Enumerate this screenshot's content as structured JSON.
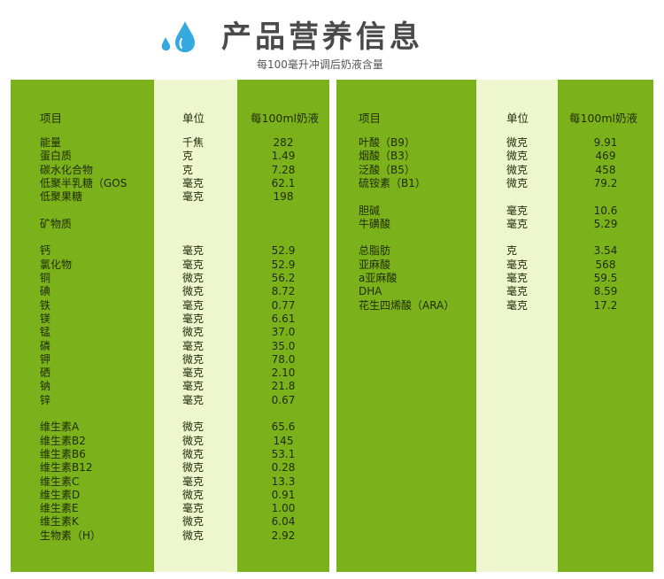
{
  "header": {
    "title": "产品营养信息",
    "subtitle": "每100毫升冲调后奶液含量"
  },
  "colors": {
    "green": "#7bb21b",
    "light": "#eef6d0",
    "drop": "#35a8e0"
  },
  "left": {
    "headers": [
      "项目",
      "单位",
      "每100ml奶液"
    ],
    "rows": [
      {
        "name": "能量",
        "unit": "千焦",
        "value": "282",
        "line": 0
      },
      {
        "name": "蛋白质",
        "unit": "克",
        "value": "1.49",
        "line": 1
      },
      {
        "name": "碳水化合物",
        "unit": "克",
        "value": "7.28",
        "line": 2
      },
      {
        "name": "低聚半乳糖（GOS",
        "unit": "毫克",
        "value": "62.1",
        "line": 3
      },
      {
        "name": "低聚果糖",
        "unit": "毫克",
        "value": "198",
        "line": 4
      },
      {
        "name": "矿物质",
        "unit": "",
        "value": "",
        "line": 6
      },
      {
        "name": "钙",
        "unit": "毫克",
        "value": "52.9",
        "line": 8
      },
      {
        "name": "氯化物",
        "unit": "毫克",
        "value": "52.9",
        "line": 9
      },
      {
        "name": "铜",
        "unit": "微克",
        "value": "56.2",
        "line": 10
      },
      {
        "name": "碘",
        "unit": "微克",
        "value": "8.72",
        "line": 11
      },
      {
        "name": "铁",
        "unit": "毫克",
        "value": "0.77",
        "line": 12
      },
      {
        "name": "镁",
        "unit": "毫克",
        "value": "6.61",
        "line": 13
      },
      {
        "name": "锰",
        "unit": "微克",
        "value": "37.0",
        "line": 14
      },
      {
        "name": "磷",
        "unit": "毫克",
        "value": "35.0",
        "line": 15
      },
      {
        "name": "钾",
        "unit": "微克",
        "value": "78.0",
        "line": 16
      },
      {
        "name": "硒",
        "unit": "毫克",
        "value": "2.10",
        "line": 17
      },
      {
        "name": "钠",
        "unit": "毫克",
        "value": "21.8",
        "line": 18
      },
      {
        "name": "锌",
        "unit": "毫克",
        "value": "0.67",
        "line": 19
      },
      {
        "name": "维生素A",
        "unit": "微克",
        "value": "65.6",
        "line": 21
      },
      {
        "name": "维生素B2",
        "unit": "微克",
        "value": "145",
        "line": 22
      },
      {
        "name": "维生素B6",
        "unit": "微克",
        "value": "53.1",
        "line": 23
      },
      {
        "name": "维生素B12",
        "unit": "微克",
        "value": "0.28",
        "line": 24
      },
      {
        "name": "维生素C",
        "unit": "毫克",
        "value": "13.3",
        "line": 25
      },
      {
        "name": "维生素D",
        "unit": "微克",
        "value": "0.91",
        "line": 26
      },
      {
        "name": "维生素E",
        "unit": "毫克",
        "value": "1.00",
        "line": 27
      },
      {
        "name": "维生素K",
        "unit": "微克",
        "value": "6.04",
        "line": 28
      },
      {
        "name": "生物素（H）",
        "unit": "微克",
        "value": "2.92",
        "line": 29
      }
    ]
  },
  "right": {
    "headers": [
      "项目",
      "单位",
      "每100ml奶液"
    ],
    "rows": [
      {
        "name": "叶酸（B9）",
        "unit": "微克",
        "value": "9.91",
        "line": 0
      },
      {
        "name": "烟酸（B3）",
        "unit": "微克",
        "value": "469",
        "line": 1
      },
      {
        "name": "泛酸（B5）",
        "unit": "微克",
        "value": "458",
        "line": 2
      },
      {
        "name": "硫铵素（B1）",
        "unit": "微克",
        "value": "79.2",
        "line": 3
      },
      {
        "name": "胆碱",
        "unit": "毫克",
        "value": "10.6",
        "line": 5
      },
      {
        "name": "牛磺酸",
        "unit": "毫克",
        "value": "5.29",
        "line": 6
      },
      {
        "name": "总脂肪",
        "unit": "克",
        "value": "3.54",
        "line": 8
      },
      {
        "name": "亚麻酸",
        "unit": "毫克",
        "value": "568",
        "line": 9
      },
      {
        "name": "a亚麻酸",
        "unit": "毫克",
        "value": "59.5",
        "line": 10
      },
      {
        "name": "DHA",
        "unit": "毫克",
        "value": "8.59",
        "line": 11
      },
      {
        "name": "花生四烯酸（ARA）",
        "unit": "毫克",
        "value": "17.2",
        "line": 12
      }
    ]
  }
}
